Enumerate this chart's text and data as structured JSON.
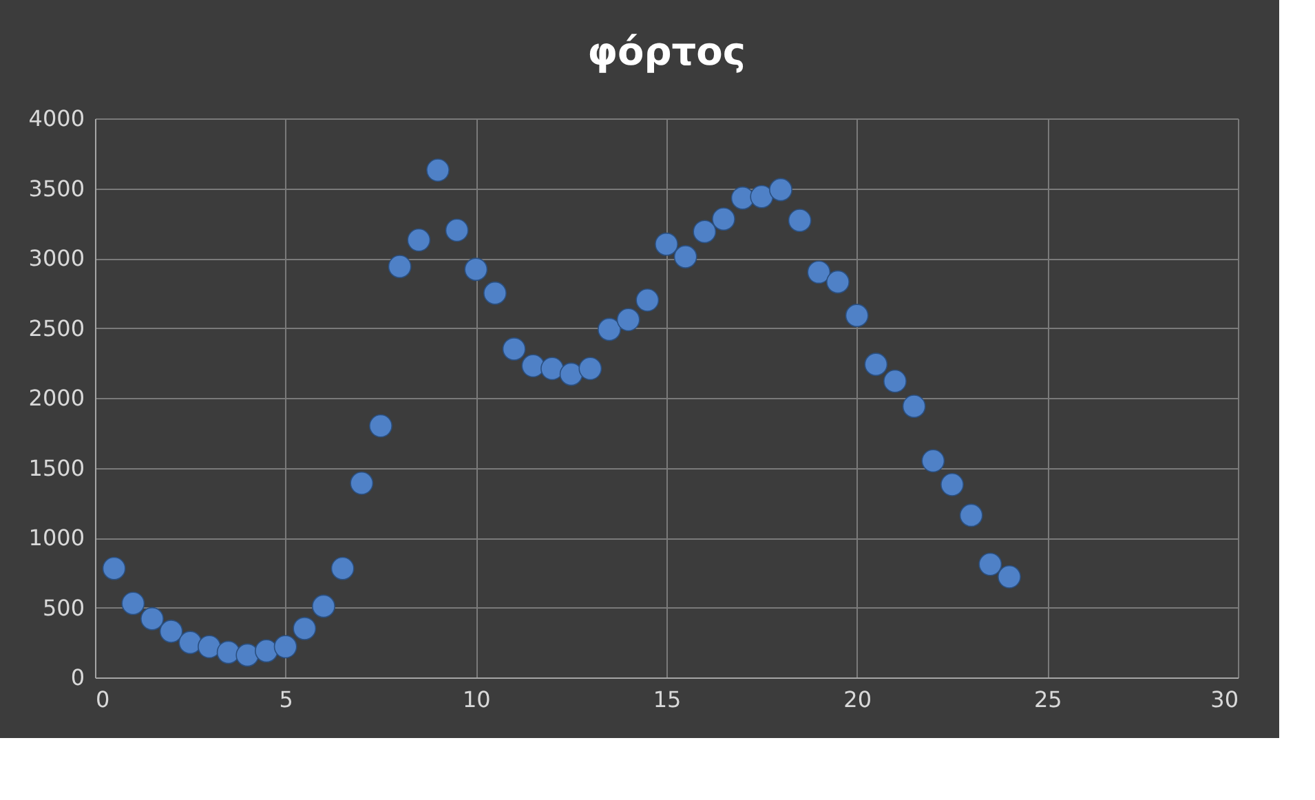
{
  "chart_data": {
    "type": "scatter",
    "title": "φόρτος",
    "x": [
      0.5,
      1,
      1.5,
      2,
      2.5,
      3,
      3.5,
      4,
      4.5,
      5,
      5.5,
      6,
      6.5,
      7,
      7.5,
      8,
      8.5,
      9,
      9.5,
      10,
      10.5,
      11,
      11.5,
      12,
      12.5,
      13,
      13.5,
      14,
      14.5,
      15,
      15.5,
      16,
      16.5,
      17,
      17.5,
      18,
      18.5,
      19,
      19.5,
      20,
      20.5,
      21,
      21.5,
      22,
      22.5,
      23,
      23.5,
      24
    ],
    "series": [
      {
        "color": "#4f81c7",
        "values": [
          780,
          530,
          420,
          330,
          250,
          220,
          180,
          160,
          190,
          220,
          350,
          510,
          780,
          1390,
          1800,
          2940,
          3130,
          3630,
          3200,
          2920,
          2750,
          2350,
          2230,
          2210,
          2170,
          2210,
          2490,
          2560,
          2700,
          3100,
          3010,
          3190,
          3280,
          3430,
          3440,
          3490,
          3270,
          2900,
          2830,
          2590,
          2240,
          2120,
          1940,
          1550,
          1380,
          1160,
          810,
          720
        ]
      }
    ],
    "xlim": [
      0,
      30
    ],
    "xticks": [
      0,
      5,
      10,
      15,
      20,
      25,
      30
    ],
    "ylim": [
      0,
      4000
    ],
    "yticks": [
      0,
      500,
      1000,
      1500,
      2000,
      2500,
      3000,
      3500,
      4000
    ],
    "grid": true,
    "marker": "circle",
    "legend": false
  }
}
